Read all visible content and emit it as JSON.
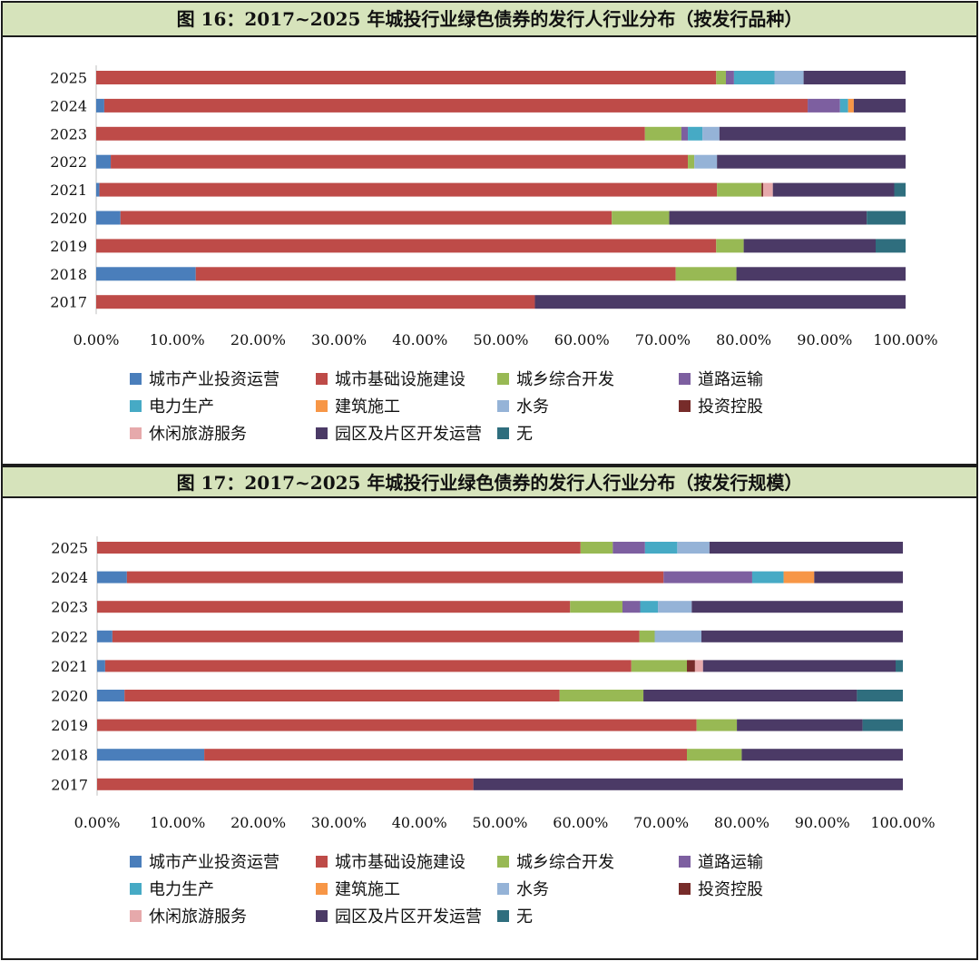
{
  "charts": [
    {
      "title": "图 16：2017~2025 年城投行业绿色债券的发行人行业分布（按发行品种）"
    },
    {
      "title": "图 17：2017~2025 年城投行业绿色债券的发行人行业分布（按发行规模）"
    }
  ],
  "chart_data": [
    {
      "type": "bar",
      "orientation": "horizontal",
      "stacked": "100%",
      "title": "图 16：2017~2025 年城投行业绿色债券的发行人行业分布（按发行品种）",
      "categories": [
        "2025",
        "2024",
        "2023",
        "2022",
        "2021",
        "2020",
        "2019",
        "2018",
        "2017"
      ],
      "xlim": [
        0,
        100
      ],
      "xticks": [
        "0.00%",
        "10.00%",
        "20.00%",
        "30.00%",
        "40.00%",
        "50.00%",
        "60.00%",
        "70.00%",
        "80.00%",
        "90.00%",
        "100.00%"
      ],
      "grid": false,
      "legend_position": "bottom",
      "series": [
        {
          "name": "城市产业投资运营",
          "color": "#4a7ebb",
          "values": [
            0,
            1.0,
            0,
            1.8,
            0.4,
            3.0,
            0,
            12.3,
            0
          ]
        },
        {
          "name": "城市基础设施建设",
          "color": "#be4b48",
          "values": [
            76.6,
            86.9,
            67.8,
            71.3,
            76.3,
            60.7,
            76.6,
            59.3,
            54.2
          ]
        },
        {
          "name": "城乡综合开发",
          "color": "#98b954",
          "values": [
            1.2,
            0,
            4.5,
            0.8,
            5.5,
            7.1,
            3.4,
            7.5,
            0
          ]
        },
        {
          "name": "道路运输",
          "color": "#7d5fa0",
          "values": [
            1.0,
            4.0,
            0.8,
            0,
            0,
            0,
            0,
            0,
            0
          ]
        },
        {
          "name": "电力生产",
          "color": "#46aac5",
          "values": [
            5.0,
            1.0,
            1.8,
            0,
            0,
            0,
            0,
            0,
            0
          ]
        },
        {
          "name": "建筑施工",
          "color": "#f79646",
          "values": [
            0,
            0.7,
            0,
            0,
            0,
            0,
            0,
            0,
            0
          ]
        },
        {
          "name": "水务",
          "color": "#95b3d7",
          "values": [
            3.6,
            0,
            2.1,
            2.8,
            0,
            0,
            0,
            0,
            0
          ]
        },
        {
          "name": "投资控股",
          "color": "#772c2a",
          "values": [
            0,
            0,
            0,
            0,
            0.2,
            0,
            0,
            0,
            0
          ]
        },
        {
          "name": "休闲旅游服务",
          "color": "#e6a9ab",
          "values": [
            0,
            0,
            0,
            0,
            1.2,
            0,
            0,
            0,
            0
          ]
        },
        {
          "name": "园区及片区开发运营",
          "color": "#4b3a66",
          "values": [
            12.6,
            6.4,
            23.0,
            23.3,
            15.0,
            24.4,
            16.3,
            20.9,
            45.8
          ]
        },
        {
          "name": "无",
          "color": "#2f6e7e",
          "values": [
            0,
            0,
            0,
            0,
            1.4,
            4.8,
            3.7,
            0,
            0
          ]
        }
      ]
    },
    {
      "type": "bar",
      "orientation": "horizontal",
      "stacked": "100%",
      "title": "图 17：2017~2025 年城投行业绿色债券的发行人行业分布（按发行规模）",
      "categories": [
        "2025",
        "2024",
        "2023",
        "2022",
        "2021",
        "2020",
        "2019",
        "2018",
        "2017"
      ],
      "xlim": [
        0,
        100
      ],
      "xticks": [
        "0.00%",
        "10.00%",
        "20.00%",
        "30.00%",
        "40.00%",
        "50.00%",
        "60.00%",
        "70.00%",
        "80.00%",
        "90.00%",
        "100.00%"
      ],
      "grid": false,
      "legend_position": "bottom",
      "series": [
        {
          "name": "城市产业投资运营",
          "color": "#4a7ebb",
          "values": [
            0,
            3.7,
            0,
            1.9,
            1.0,
            3.4,
            0,
            13.3,
            0
          ]
        },
        {
          "name": "城市基础设施建设",
          "color": "#be4b48",
          "values": [
            60.0,
            66.6,
            58.7,
            65.4,
            65.3,
            54.0,
            74.4,
            59.9,
            46.7
          ]
        },
        {
          "name": "城乡综合开发",
          "color": "#98b954",
          "values": [
            4.0,
            0,
            6.5,
            1.9,
            6.9,
            10.4,
            5.0,
            6.8,
            0
          ]
        },
        {
          "name": "道路运输",
          "color": "#7d5fa0",
          "values": [
            4.0,
            11.0,
            2.2,
            0,
            0,
            0,
            0,
            0,
            0
          ]
        },
        {
          "name": "电力生产",
          "color": "#46aac5",
          "values": [
            4.0,
            3.9,
            2.2,
            0,
            0,
            0,
            0,
            0,
            0
          ]
        },
        {
          "name": "建筑施工",
          "color": "#f79646",
          "values": [
            0,
            3.8,
            0,
            0,
            0,
            0,
            0,
            0,
            0
          ]
        },
        {
          "name": "水务",
          "color": "#95b3d7",
          "values": [
            4.0,
            0,
            4.2,
            5.8,
            0,
            0,
            0,
            0,
            0
          ]
        },
        {
          "name": "投资控股",
          "color": "#772c2a",
          "values": [
            0,
            0,
            0,
            0,
            1.0,
            0,
            0,
            0,
            0
          ]
        },
        {
          "name": "休闲旅游服务",
          "color": "#e6a9ab",
          "values": [
            0,
            0,
            0,
            0,
            1.0,
            0,
            0,
            0,
            0
          ]
        },
        {
          "name": "园区及片区开发运营",
          "color": "#4b3a66",
          "values": [
            24.0,
            11.0,
            26.2,
            25.0,
            23.9,
            26.5,
            15.6,
            20.0,
            53.3
          ]
        },
        {
          "name": "无",
          "color": "#2f6e7e",
          "values": [
            0,
            0,
            0,
            0,
            0.9,
            5.7,
            5.0,
            0,
            0
          ]
        }
      ]
    }
  ]
}
